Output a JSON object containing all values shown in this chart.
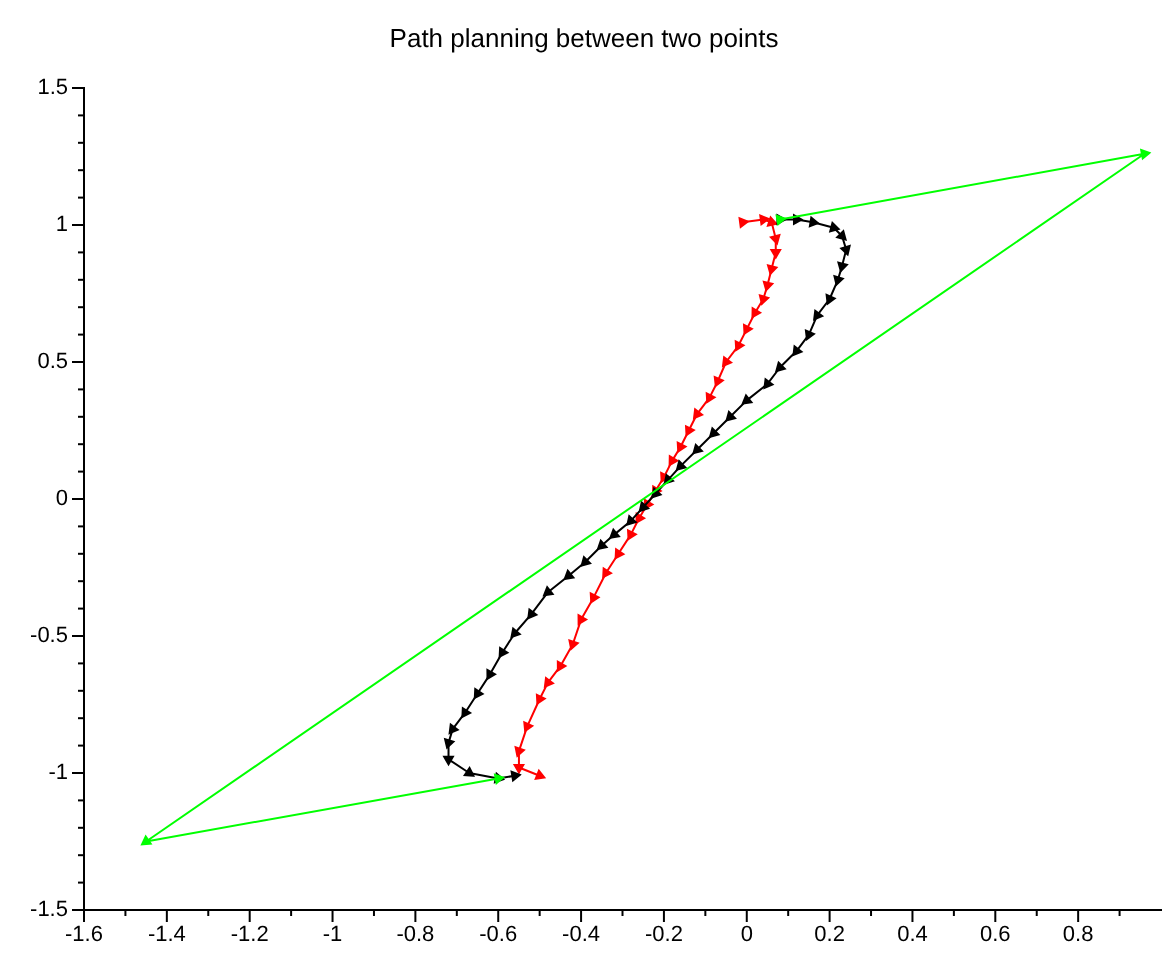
{
  "chart_data": {
    "type": "line",
    "title": "Path planning between two points",
    "marker": "triangle",
    "grid": false,
    "xlim": [
      -1.6,
      1.0
    ],
    "ylim": [
      -1.5,
      1.5
    ],
    "xticks": [
      -1.6,
      {
        "value": -1.5,
        "label": null
      },
      -1.4,
      {
        "value": -1.3,
        "label": null
      },
      -1.2,
      {
        "value": -1.1,
        "label": null
      },
      -1,
      {
        "value": -0.9,
        "label": null
      },
      -0.8,
      {
        "value": -0.7,
        "label": null
      },
      -0.6,
      {
        "value": -0.5,
        "label": null
      },
      -0.4,
      {
        "value": -0.3,
        "label": null
      },
      -0.2,
      {
        "value": -0.1,
        "label": null
      },
      0,
      {
        "value": 0.1,
        "label": null
      },
      0.2,
      {
        "value": 0.3,
        "label": null
      },
      0.4,
      {
        "value": 0.5,
        "label": null
      },
      0.6,
      {
        "value": 0.7,
        "label": null
      },
      0.8,
      {
        "value": 0.9,
        "label": null
      }
    ],
    "yticks": [
      -1.5,
      {
        "value": -1.4,
        "label": null
      },
      {
        "value": -1.3,
        "label": null
      },
      {
        "value": -1.2,
        "label": null
      },
      {
        "value": -1.1,
        "label": null
      },
      -1,
      {
        "value": -0.9,
        "label": null
      },
      {
        "value": -0.8,
        "label": null
      },
      {
        "value": -0.7,
        "label": null
      },
      {
        "value": -0.6,
        "label": null
      },
      -0.5,
      {
        "value": -0.4,
        "label": null
      },
      {
        "value": -0.3,
        "label": null
      },
      {
        "value": -0.2,
        "label": null
      },
      {
        "value": -0.1,
        "label": null
      },
      0,
      {
        "value": 0.1,
        "label": null
      },
      {
        "value": 0.2,
        "label": null
      },
      {
        "value": 0.3,
        "label": null
      },
      {
        "value": 0.4,
        "label": null
      },
      0.5,
      {
        "value": 0.6,
        "label": null
      },
      {
        "value": 0.7,
        "label": null
      },
      {
        "value": 0.8,
        "label": null
      },
      {
        "value": 0.9,
        "label": null
      },
      1,
      {
        "value": 1.1,
        "label": null
      },
      {
        "value": 1.2,
        "label": null
      },
      {
        "value": 1.3,
        "label": null
      },
      {
        "value": 1.4,
        "label": null
      },
      1.5
    ],
    "series": [
      {
        "color": "#00ff00",
        "x": [
          0.08,
          0.96,
          -1.45,
          -0.6
        ],
        "values": [
          1.02,
          1.26,
          -1.25,
          -1.02
        ]
      },
      {
        "color": "#000000",
        "x": [
          0.08,
          0.12,
          0.16,
          0.21,
          0.23,
          0.24,
          0.23,
          0.22,
          0.2,
          0.17,
          0.15,
          0.12,
          0.08,
          0.05,
          0.0,
          -0.04,
          -0.08,
          -0.12,
          -0.16,
          -0.19,
          -0.22,
          -0.25,
          -0.28,
          -0.32,
          -0.35,
          -0.39,
          -0.43,
          -0.48,
          -0.52,
          -0.56,
          -0.59,
          -0.62,
          -0.65,
          -0.68,
          -0.71,
          -0.72,
          -0.72,
          -0.67,
          -0.6,
          -0.56
        ],
        "values": [
          1.02,
          1.02,
          1.01,
          0.99,
          0.96,
          0.91,
          0.85,
          0.8,
          0.73,
          0.67,
          0.6,
          0.54,
          0.48,
          0.42,
          0.36,
          0.3,
          0.24,
          0.18,
          0.12,
          0.07,
          0.02,
          -0.03,
          -0.08,
          -0.13,
          -0.17,
          -0.23,
          -0.28,
          -0.34,
          -0.42,
          -0.49,
          -0.56,
          -0.64,
          -0.71,
          -0.78,
          -0.84,
          -0.89,
          -0.95,
          -1.0,
          -1.02,
          -1.01
        ]
      },
      {
        "color": "#ff0000",
        "x": [
          -0.01,
          0.04,
          0.06,
          0.07,
          0.07,
          0.06,
          0.05,
          0.04,
          0.02,
          0.0,
          -0.02,
          -0.05,
          -0.07,
          -0.09,
          -0.12,
          -0.14,
          -0.16,
          -0.18,
          -0.2,
          -0.22,
          -0.24,
          -0.26,
          -0.28,
          -0.31,
          -0.34,
          -0.37,
          -0.4,
          -0.42,
          -0.45,
          -0.48,
          -0.5,
          -0.53,
          -0.55,
          -0.55,
          -0.5
        ],
        "values": [
          1.01,
          1.02,
          1.01,
          0.95,
          0.9,
          0.84,
          0.78,
          0.73,
          0.68,
          0.62,
          0.56,
          0.5,
          0.43,
          0.37,
          0.31,
          0.25,
          0.19,
          0.14,
          0.08,
          0.03,
          -0.02,
          -0.07,
          -0.13,
          -0.2,
          -0.27,
          -0.36,
          -0.44,
          -0.53,
          -0.61,
          -0.67,
          -0.73,
          -0.83,
          -0.92,
          -0.98,
          -1.01
        ]
      }
    ]
  }
}
